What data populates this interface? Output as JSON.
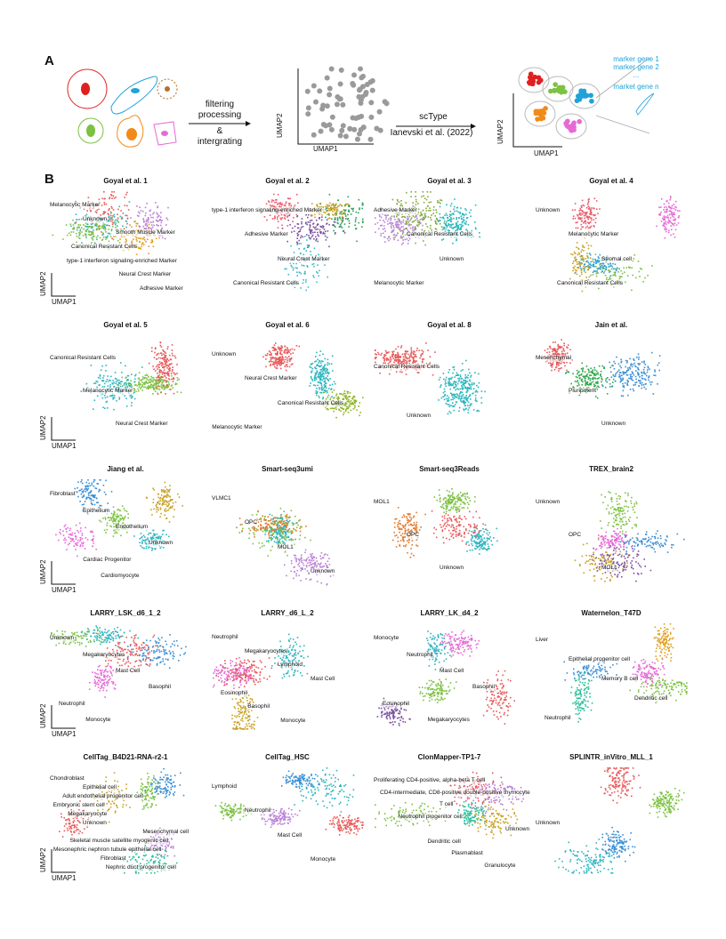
{
  "panel_a": {
    "letter": "A",
    "step1": [
      "filtering",
      "processing",
      "&",
      "intergrating"
    ],
    "step2": [
      "scType",
      "Ianevski et al. (2022)"
    ],
    "axis_x": "UMAP1",
    "axis_y": "UMAP2",
    "markers": [
      "marker gene 1",
      "marker gene 2",
      "...",
      "market gene n"
    ]
  },
  "panel_b": {
    "letter": "B",
    "axis_x": "UMAP1",
    "axis_y": "UMAP2",
    "plots": [
      {
        "title": "Goyal et al. 1",
        "labels": [
          "Melanocytic Marker",
          "Unknown",
          "Smooth Muscle Marker",
          "Canonical Resistant Cells",
          "type-1 interferon signaling-enriched Marker",
          "Neural Crest Marker",
          "Adhesive Marker"
        ],
        "colors": [
          "#7cc242",
          "#b97fd6",
          "#e0a020",
          "#2fb5c0",
          "#e8595a"
        ]
      },
      {
        "title": "Goyal et al. 2",
        "labels": [
          "type-1 interferon signaling-enriched Marker",
          "Adhesive Marker",
          "Neural Crest Marker",
          "Canonical Resistant Cells"
        ],
        "colors": [
          "#7b4fa0",
          "#c9a227",
          "#2e9e5b",
          "#e85a6a",
          "#3cb8c6"
        ]
      },
      {
        "title": "Goyal et al. 3",
        "labels": [
          "Adhesive Marker",
          "Canonical Resistant Cells",
          "Unknown",
          "Melanocytic Marker"
        ],
        "colors": [
          "#7fab3a",
          "#b884d9",
          "#28b6bd"
        ]
      },
      {
        "title": "Goyal et al. 4",
        "labels": [
          "Unknown",
          "Melanocytic Marker",
          "Stromal cell",
          "Canonical Resistant Cells"
        ],
        "colors": [
          "#e66ad6",
          "#c9a227",
          "#2e9fcf",
          "#7cc242",
          "#e85a6a"
        ]
      },
      {
        "title": "Goyal et al. 5",
        "labels": [
          "Canonical Resistant Cells",
          "Melanocytic Marker",
          "Neural Crest Marker"
        ],
        "colors": [
          "#e8595a",
          "#7cc242",
          "#2fb5c0"
        ]
      },
      {
        "title": "Goyal et al. 6",
        "labels": [
          "Unknown",
          "Neural Crest Marker",
          "Canonical Resistant Cells",
          "Melanocytic Marker"
        ],
        "colors": [
          "#e8595a",
          "#28b6bd",
          "#8fb52a"
        ]
      },
      {
        "title": "Goyal et al. 8",
        "labels": [
          "Canonical Resistant Cells",
          "Unknown"
        ],
        "colors": [
          "#28b6bd",
          "#e8595a"
        ]
      },
      {
        "title": "Jain et al.",
        "labels": [
          "Mesenchymal",
          "Pluripotent",
          "Unknown"
        ],
        "colors": [
          "#e8595a",
          "#2ea84a",
          "#3b8fd6"
        ]
      },
      {
        "title": "Jiang et al.",
        "labels": [
          "Fibroblast",
          "Epithelium",
          "Endothelium",
          "Unknown",
          "Cardiac Progenitor",
          "Cardiomyocyte"
        ],
        "colors": [
          "#e66ad6",
          "#3b8fd6",
          "#2fb5c0",
          "#c9a227",
          "#7cc242"
        ]
      },
      {
        "title": "Smart-seq3umi",
        "labels": [
          "VLMC1",
          "OPC",
          "MOL1",
          "Unknown"
        ],
        "colors": [
          "#2fb5c0",
          "#e0792b",
          "#7cc242",
          "#b97fd6"
        ]
      },
      {
        "title": "Smart-seq3Reads",
        "labels": [
          "MOL1",
          "OPC",
          "Unknown"
        ],
        "colors": [
          "#2fb5c0",
          "#e0792b",
          "#e8595a",
          "#7cc242"
        ]
      },
      {
        "title": "TREX_brain2",
        "labels": [
          "Unknown",
          "OPC",
          "MOL1"
        ],
        "colors": [
          "#e66ad6",
          "#3b8fd6",
          "#7cc242",
          "#c9a227",
          "#7b4fa0"
        ]
      },
      {
        "title": "LARRY_LSK_d6_1_2",
        "labels": [
          "Unknown",
          "Megakaryocytes",
          "Mast Cell",
          "Basophil",
          "Neutrophil",
          "Monocyte"
        ],
        "colors": [
          "#3b8fd6",
          "#e66ad6",
          "#2fb5c0",
          "#7cc242",
          "#e8595a"
        ]
      },
      {
        "title": "LARRY_d6_L_2",
        "labels": [
          "Neutrophil",
          "Megakaryocytes",
          "Lymphoid",
          "Mast Cell",
          "Eosinophil",
          "Basophil",
          "Monocyte"
        ],
        "colors": [
          "#e66ad6",
          "#c9a227",
          "#2fb5c0",
          "#e8595a"
        ]
      },
      {
        "title": "LARRY_LK_d4_2",
        "labels": [
          "Monocyte",
          "Neutrophil",
          "Mast Cell",
          "Basophil",
          "Eosinophil",
          "Megakaryocytes"
        ],
        "colors": [
          "#e66ad6",
          "#7b4fa0",
          "#e8595a",
          "#2fb5c0",
          "#7cc242"
        ]
      },
      {
        "title": "Waternelon_T47D",
        "labels": [
          "Liver",
          "Epithelial progenitor cell",
          "Memory B cell",
          "Dendritic cell",
          "Neutrophil"
        ],
        "colors": [
          "#e66ad6",
          "#2bbf9a",
          "#7cc242",
          "#3b8fd6",
          "#e0a020"
        ]
      },
      {
        "title": "CellTag_B4D21-RNA-r2-1",
        "labels": [
          "Chondroblast",
          "Epithelial cell",
          "Adult endothelial progenitor cell",
          "Embryonic stem cell",
          "Megakaryocyte",
          "Unknown",
          "Mesenchymal cell",
          "Skeletal muscle satellite myogenic cell",
          "Mesonephric nephron tubule epithelial cell",
          "Fibroblast",
          "Nephric duct progenitor cell"
        ],
        "colors": [
          "#c9a227",
          "#2bbf9a",
          "#b97fd6",
          "#7cc242",
          "#3b8fd6",
          "#e8595a"
        ]
      },
      {
        "title": "CellTag_HSC",
        "labels": [
          "Lymphoid",
          "Neutrophil",
          "Mast Cell",
          "Monocyte"
        ],
        "colors": [
          "#e8595a",
          "#3b8fd6",
          "#2fb5c0",
          "#7cc242",
          "#b97fd6"
        ]
      },
      {
        "title": "ClonMapper-TP1-7",
        "labels": [
          "Proliferating CD4-positive, alpha-beta T cell",
          "CD4-intermediate, CD8-positive double-positive thymocyte",
          "T cell",
          "Neutrophil progenitor cell",
          "Unknown",
          "Dendritic cell",
          "Plasmablast",
          "Granulocyte"
        ],
        "colors": [
          "#c9a227",
          "#2bbf9a",
          "#b97fd6",
          "#7cc242",
          "#e8595a"
        ]
      },
      {
        "title": "SPLINTR_inVitro_MLL_1",
        "labels": [
          "Unknown"
        ],
        "colors": [
          "#2fb5c0",
          "#3b8fd6",
          "#e8595a",
          "#7cc242"
        ]
      }
    ]
  }
}
